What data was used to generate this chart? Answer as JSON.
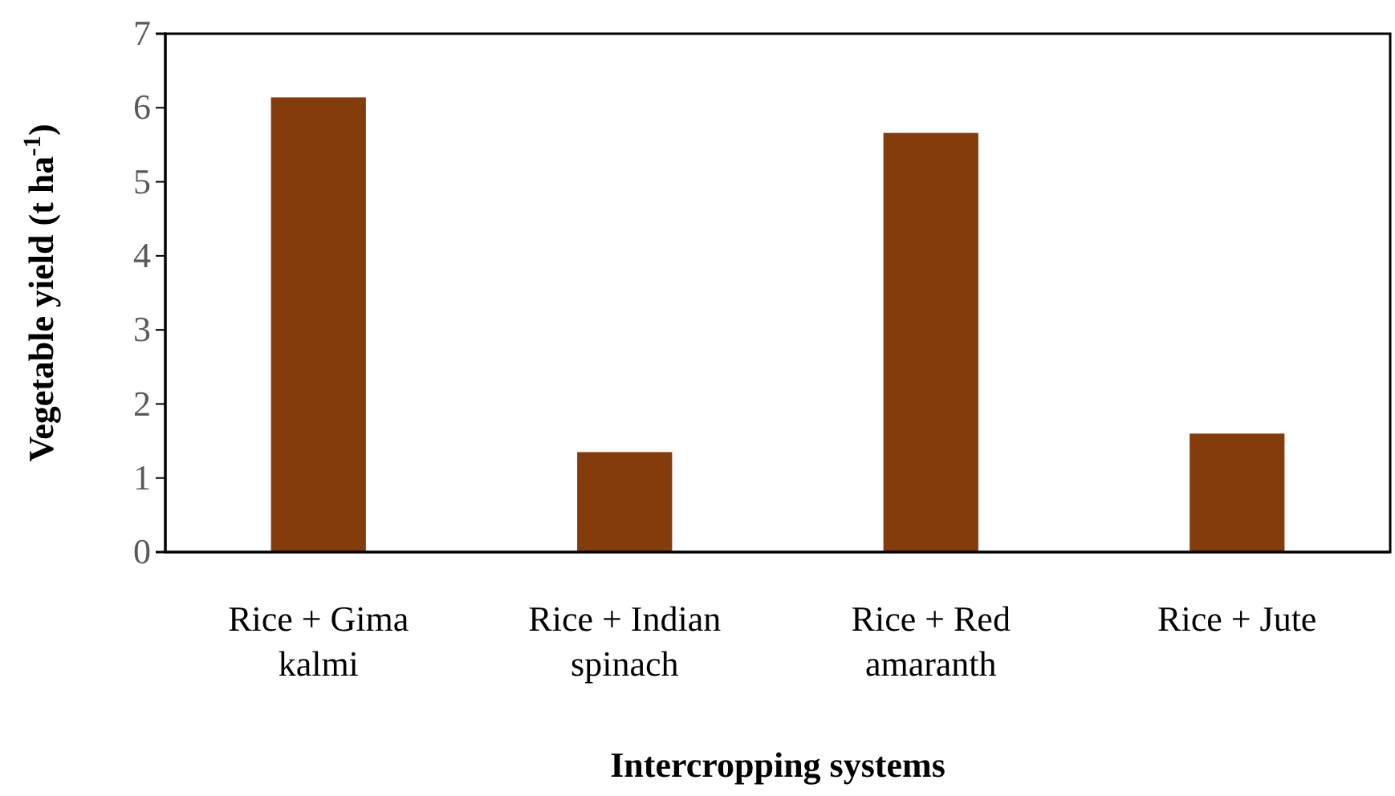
{
  "chart_data": {
    "type": "bar",
    "xlabel": "Intercropping systems",
    "ylabel": "Vegetable yield (t ha$^{-1}$)",
    "categories": [
      "Rice + Gima kalmi",
      "Rice + Indian spinach",
      "Rice + Red amaranth",
      "Rice + Jute"
    ],
    "values": [
      6.14,
      1.35,
      5.66,
      1.6
    ],
    "color": "#843c0c",
    "ylim": [
      0,
      7
    ],
    "yticks": [
      0,
      1,
      2,
      3,
      4,
      5,
      6,
      7
    ],
    "grid": false
  }
}
